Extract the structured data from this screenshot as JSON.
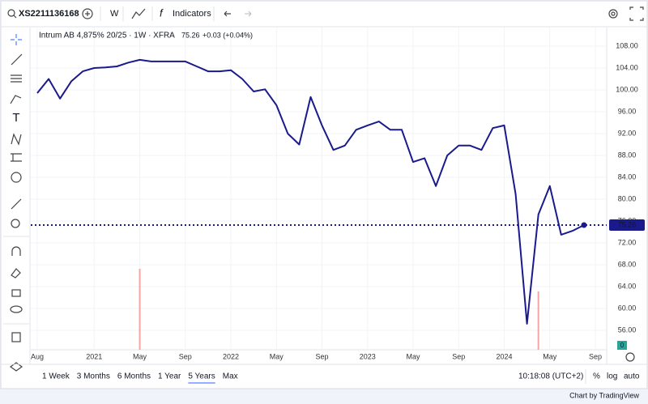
{
  "toolbar": {
    "symbol": "XS2211136168",
    "interval": "W",
    "indicators": "Indicators"
  },
  "chart_data": {
    "type": "line",
    "title": "Intrum AB 4,875% 20/25 · 1W · XFRA",
    "change": "+0.03 (+0.04%)",
    "x": [
      "2020-08",
      "2020-09",
      "2020-10",
      "2020-11",
      "2020-12",
      "2021-01",
      "2021-02",
      "2021-03",
      "2021-04",
      "2021-05",
      "2021-06",
      "2021-07",
      "2021-08",
      "2021-09",
      "2021-10",
      "2021-11",
      "2021-12",
      "2022-01",
      "2022-02",
      "2022-03",
      "2022-04",
      "2022-05",
      "2022-06",
      "2022-07",
      "2022-08",
      "2022-09",
      "2022-10",
      "2022-11",
      "2022-12",
      "2023-01",
      "2023-02",
      "2023-03",
      "2023-04",
      "2023-05",
      "2023-06",
      "2023-07",
      "2023-08",
      "2023-09",
      "2023-10",
      "2023-11",
      "2023-12",
      "2024-01",
      "2024-02",
      "2024-03",
      "2024-04",
      "2024-05",
      "2024-06",
      "2024-07",
      "2024-08"
    ],
    "series": [
      {
        "color": "#1a1a8c",
        "values": [
          99.4,
          102,
          98.4,
          101.6,
          103.4,
          104,
          104.1,
          104.3,
          105,
          105.5,
          105.2,
          105.2,
          105.2,
          105.2,
          104.3,
          103.4,
          103.4,
          103.6,
          102,
          99.7,
          100.1,
          97.2,
          92,
          90,
          98.7,
          93.5,
          89,
          89.8,
          92.7,
          93.5,
          94.2,
          92.7,
          92.7,
          86.8,
          87.5,
          82.4,
          88,
          89.8,
          89.8,
          89,
          93,
          93.5,
          80.9,
          57.2,
          77.2,
          82.4,
          73.5,
          74.2,
          75.26
        ]
      }
    ],
    "volume": {
      "x": [
        "2021-05",
        "2024-04"
      ],
      "values": [
        100,
        72
      ],
      "color": "#f4a6a6",
      "label": "0"
    },
    "xlim": [
      "2020-08",
      "2024-09"
    ],
    "xticks": [
      {
        "value": "2020-08",
        "label": "Aug"
      },
      {
        "value": "2021-01",
        "label": "2021"
      },
      {
        "value": "2021-05",
        "label": "May"
      },
      {
        "value": "2021-09",
        "label": "Sep"
      },
      {
        "value": "2022-01",
        "label": "2022"
      },
      {
        "value": "2022-05",
        "label": "May"
      },
      {
        "value": "2022-09",
        "label": "Sep"
      },
      {
        "value": "2023-01",
        "label": "2023"
      },
      {
        "value": "2023-05",
        "label": "May"
      },
      {
        "value": "2023-09",
        "label": "Sep"
      },
      {
        "value": "2024-01",
        "label": "2024"
      },
      {
        "value": "2024-05",
        "label": "May"
      },
      {
        "value": "2024-09",
        "label": "Sep"
      }
    ],
    "ylim": [
      52.44,
      111.26
    ],
    "yticks": [
      {
        "value": 56,
        "label": "56.00"
      },
      {
        "value": 60,
        "label": "60.00"
      },
      {
        "value": 64,
        "label": "64.00"
      },
      {
        "value": 68,
        "label": "68.00"
      },
      {
        "value": 72,
        "label": "72.00"
      },
      {
        "value": 76,
        "label": "76.00"
      },
      {
        "value": 80,
        "label": "80.00"
      },
      {
        "value": 84,
        "label": "84.00"
      },
      {
        "value": 88,
        "label": "88.00"
      },
      {
        "value": 92,
        "label": "92.00"
      },
      {
        "value": 96,
        "label": "96.00"
      },
      {
        "value": 100,
        "label": "100.00"
      },
      {
        "value": 104,
        "label": "104.00"
      },
      {
        "value": 108,
        "label": "108.00"
      }
    ],
    "grid": true
  },
  "bottom_bar": {
    "ranges": [
      "1 Week",
      "3 Months",
      "6 Months",
      "1 Year",
      "5 Years",
      "Max"
    ],
    "active_range": 4,
    "time": "10:18:08 (UTC+2)",
    "percent": "%",
    "log": "log",
    "auto": "auto"
  },
  "footer": {
    "credit": "Chart by TradingView"
  }
}
